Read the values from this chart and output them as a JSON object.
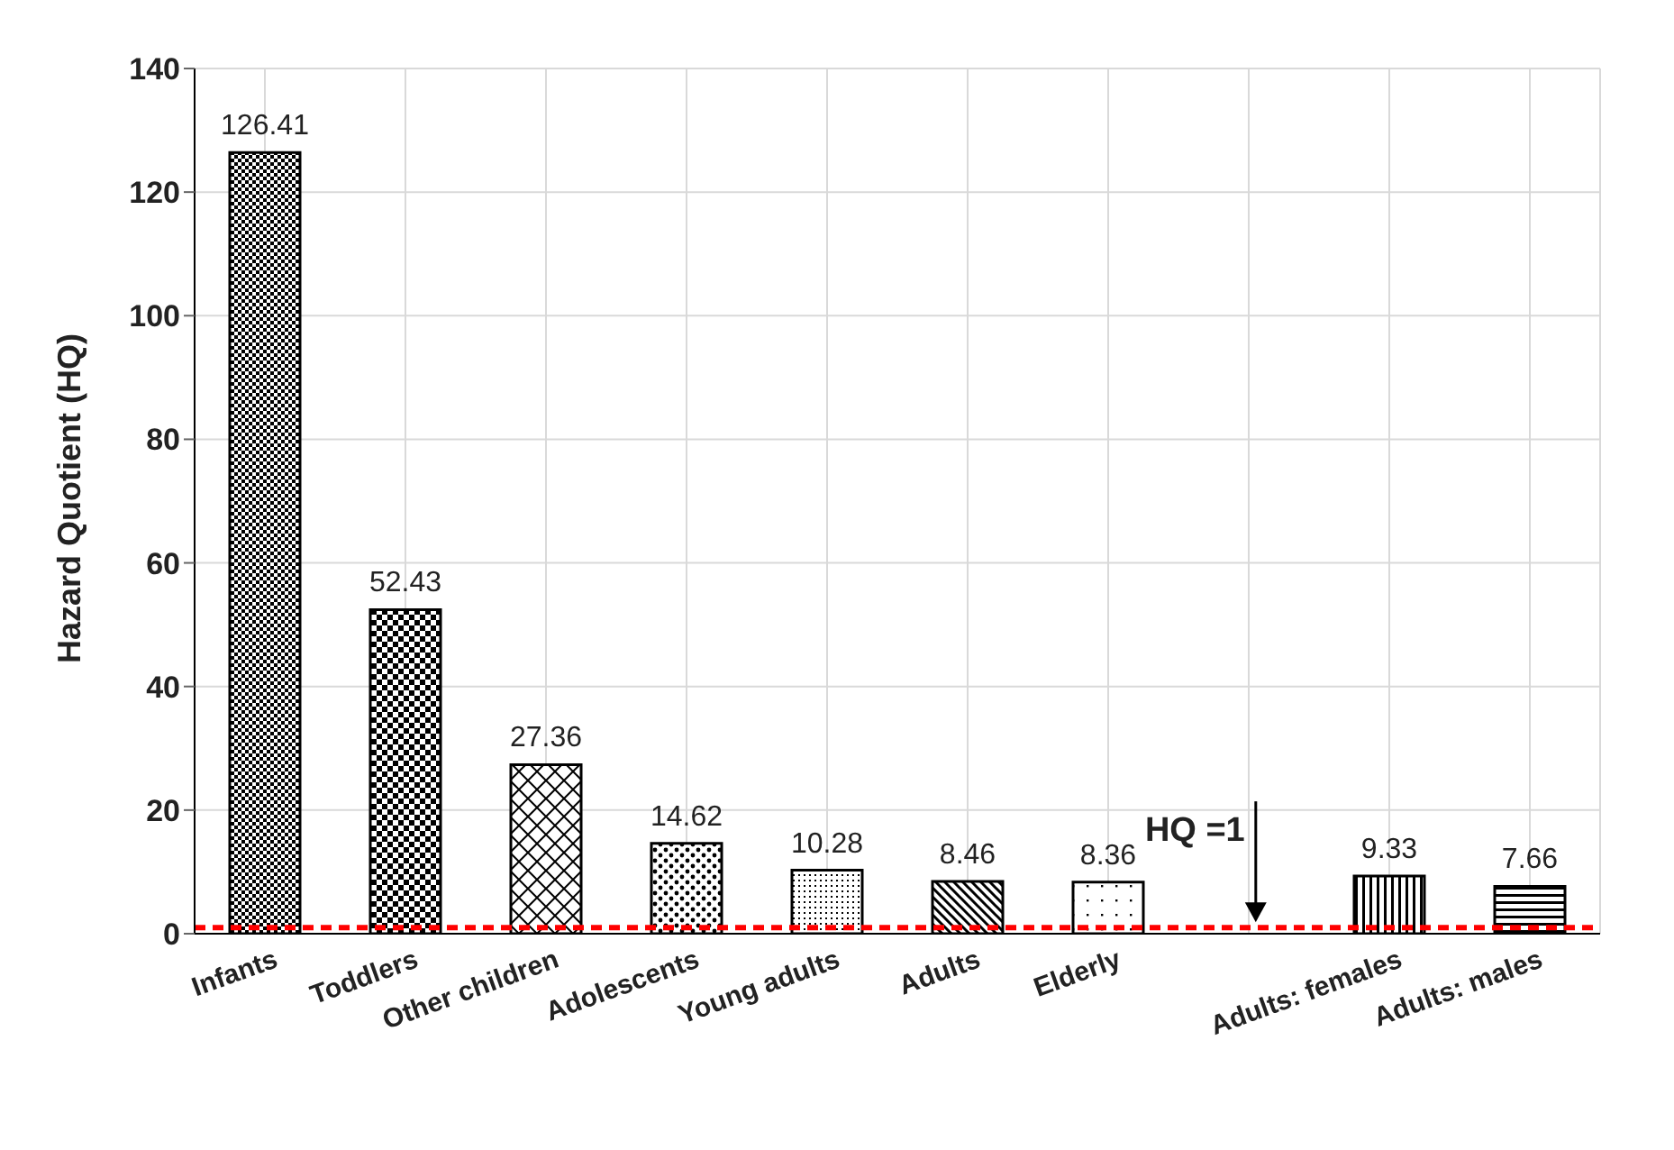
{
  "chart_data": {
    "type": "bar",
    "ylabel": "Hazard Quotient (HQ)",
    "categories": [
      "Infants",
      "Toddlers",
      "Other children",
      "Adolescents",
      "Young adults",
      "Adults",
      "Elderly",
      null,
      "Adults: females",
      "Adults: males"
    ],
    "values": [
      126.41,
      52.43,
      27.36,
      14.62,
      10.28,
      8.46,
      8.36,
      null,
      9.33,
      7.66
    ],
    "colors": [
      "#000000",
      "#000000",
      "#000000",
      "#000000",
      "#000000",
      "#000000",
      "#000000",
      "#000000",
      "#000000",
      "#000000"
    ],
    "ylim": [
      0,
      140
    ],
    "yticks": [
      0,
      20,
      40,
      60,
      80,
      100,
      120,
      140
    ],
    "grid": true,
    "data_labels": true,
    "ref_lines": [
      {
        "axis": "y",
        "value": 1,
        "label": "HQ =1",
        "color": "#ff0000",
        "line_style": "dashed"
      }
    ]
  }
}
